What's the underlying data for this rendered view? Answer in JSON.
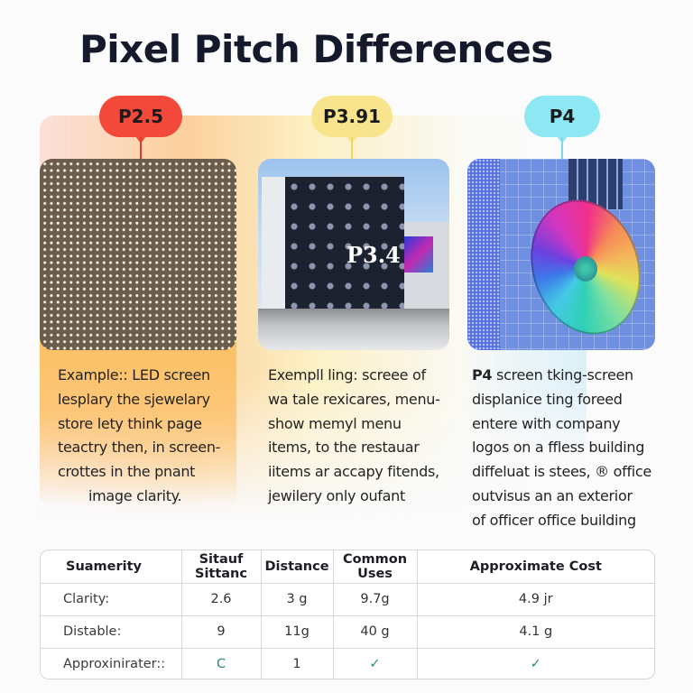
{
  "title": "Pixel Pitch Differences",
  "colors": {
    "p25": "#f2493a",
    "p391": "#f8e48d",
    "p4": "#8ee8f4",
    "check": "#2f8a6a"
  },
  "panels": [
    {
      "label": "P2.5",
      "image": "led-module-closeup",
      "description": [
        "Example:: LED screen",
        "lesplary the sjewelary",
        "store lety think page",
        "teactry then, in screen-",
        "crottes in the pnant",
        "image clarity."
      ]
    },
    {
      "label": "P3.91",
      "image": "building-facade-led-screen",
      "image_text": "P3.4",
      "description": [
        "Exempll ling: screee of",
        "wa tale rexicares, menu-",
        "show memyl menu",
        "items, to the restauar",
        "iitems ar accapy fitends,",
        "jewilery only oufant"
      ]
    },
    {
      "label": "P4",
      "image": "glass-building-spiral-display",
      "description_bold": "P4",
      "description": [
        " screen tking-screen",
        "displanice ting foreed",
        "entere with company",
        "logos on a ffless building",
        "diffeluat is stees, ® office",
        "outvisus an an exterior",
        "of officer office building"
      ]
    }
  ],
  "table": {
    "headers": [
      "Suamerity",
      "Sitauf Sittanc",
      "Distance",
      "Common Uses",
      "Approximate Cost"
    ],
    "rows": [
      [
        "Clarity:",
        "2.6",
        "3 g",
        "9.7g",
        "4.9 jr"
      ],
      [
        "Distable:",
        "9",
        "11g",
        "40 g",
        "4.1 g"
      ],
      [
        "Approxinirater::",
        "C",
        "1",
        "✓",
        "✓"
      ]
    ]
  }
}
